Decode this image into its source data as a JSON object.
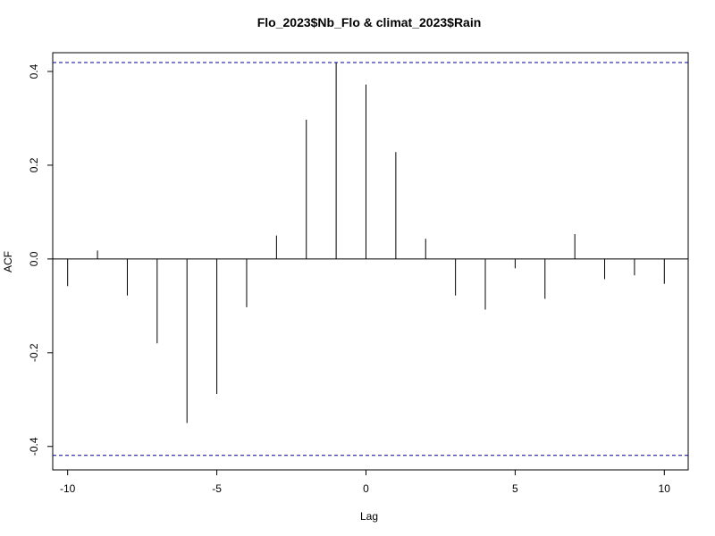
{
  "chart_data": {
    "type": "bar",
    "title": "Flo_2023$Nb_Flo & climat_2023$Rain",
    "xlabel": "Lag",
    "ylabel": "ACF",
    "xlim": [
      -10.5,
      10.8
    ],
    "ylim": [
      -0.45,
      0.44
    ],
    "x_ticks": [
      -10,
      -5,
      0,
      5,
      10
    ],
    "y_ticks": [
      -0.4,
      -0.2,
      0.0,
      0.2,
      0.4
    ],
    "x_tick_labels": [
      "-10",
      "-5",
      "0",
      "5",
      "10"
    ],
    "y_tick_labels": [
      "-0.4",
      "-0.2",
      "0.0",
      "0.2",
      "0.4"
    ],
    "lags": [
      -10,
      -9,
      -8,
      -7,
      -6,
      -5,
      -4,
      -3,
      -2,
      -1,
      0,
      1,
      2,
      3,
      4,
      5,
      6,
      7,
      8,
      9,
      10
    ],
    "values": [
      -0.058,
      0.018,
      -0.078,
      -0.18,
      -0.35,
      -0.288,
      -0.103,
      0.05,
      0.297,
      0.42,
      0.372,
      0.228,
      0.043,
      -0.078,
      -0.108,
      -0.02,
      -0.085,
      0.053,
      -0.043,
      -0.035,
      -0.053
    ],
    "confidence_bound": 0.419,
    "grid": false,
    "colors": {
      "bars": "#000000",
      "confidence": "#00008b",
      "axes": "#000000"
    }
  }
}
